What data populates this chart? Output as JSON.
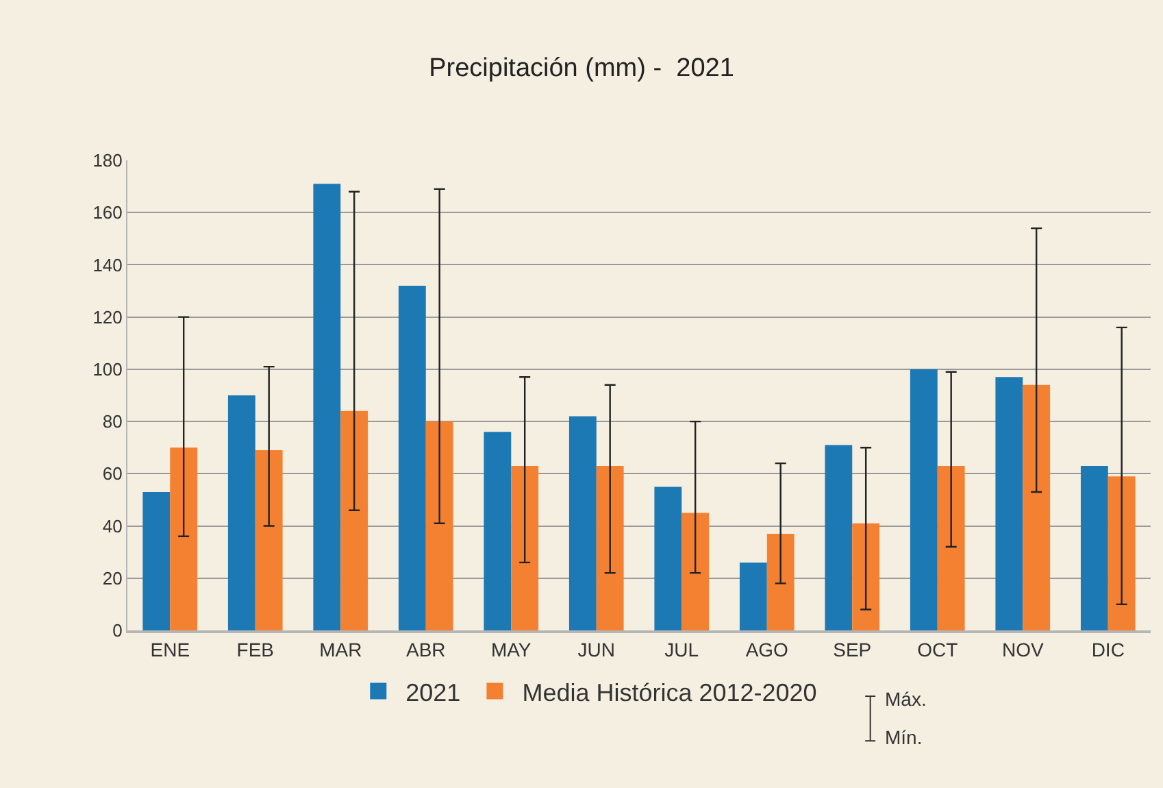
{
  "chart_data": {
    "type": "bar",
    "title": "Precipitación (mm) -  2021",
    "categories": [
      "ENE",
      "FEB",
      "MAR",
      "ABR",
      "MAY",
      "JUN",
      "JUL",
      "AGO",
      "SEP",
      "OCT",
      "NOV",
      "DIC"
    ],
    "series": [
      {
        "name": "2021",
        "color": "#1c79b4",
        "values": [
          53,
          90,
          171,
          132,
          76,
          82,
          55,
          26,
          71,
          100,
          97,
          63
        ]
      },
      {
        "name": "Media Histórica 2012-2020",
        "color": "#f48131",
        "values": [
          70,
          69,
          84,
          80,
          63,
          63,
          45,
          37,
          41,
          63,
          94,
          59
        ],
        "errors": [
          [
            36,
            120
          ],
          [
            40,
            101
          ],
          [
            46,
            168
          ],
          [
            41,
            169
          ],
          [
            26,
            97
          ],
          [
            22,
            94
          ],
          [
            22,
            80
          ],
          [
            18,
            64
          ],
          [
            8,
            70
          ],
          [
            32,
            99
          ],
          [
            53,
            154
          ],
          [
            10,
            116
          ]
        ]
      }
    ],
    "ylim": [
      0,
      180
    ],
    "yticks": [
      0,
      20,
      40,
      60,
      80,
      100,
      120,
      140,
      160,
      180
    ],
    "grid": "y",
    "legend": "bottom",
    "annotations": [
      "Máx.",
      "Mín."
    ]
  }
}
